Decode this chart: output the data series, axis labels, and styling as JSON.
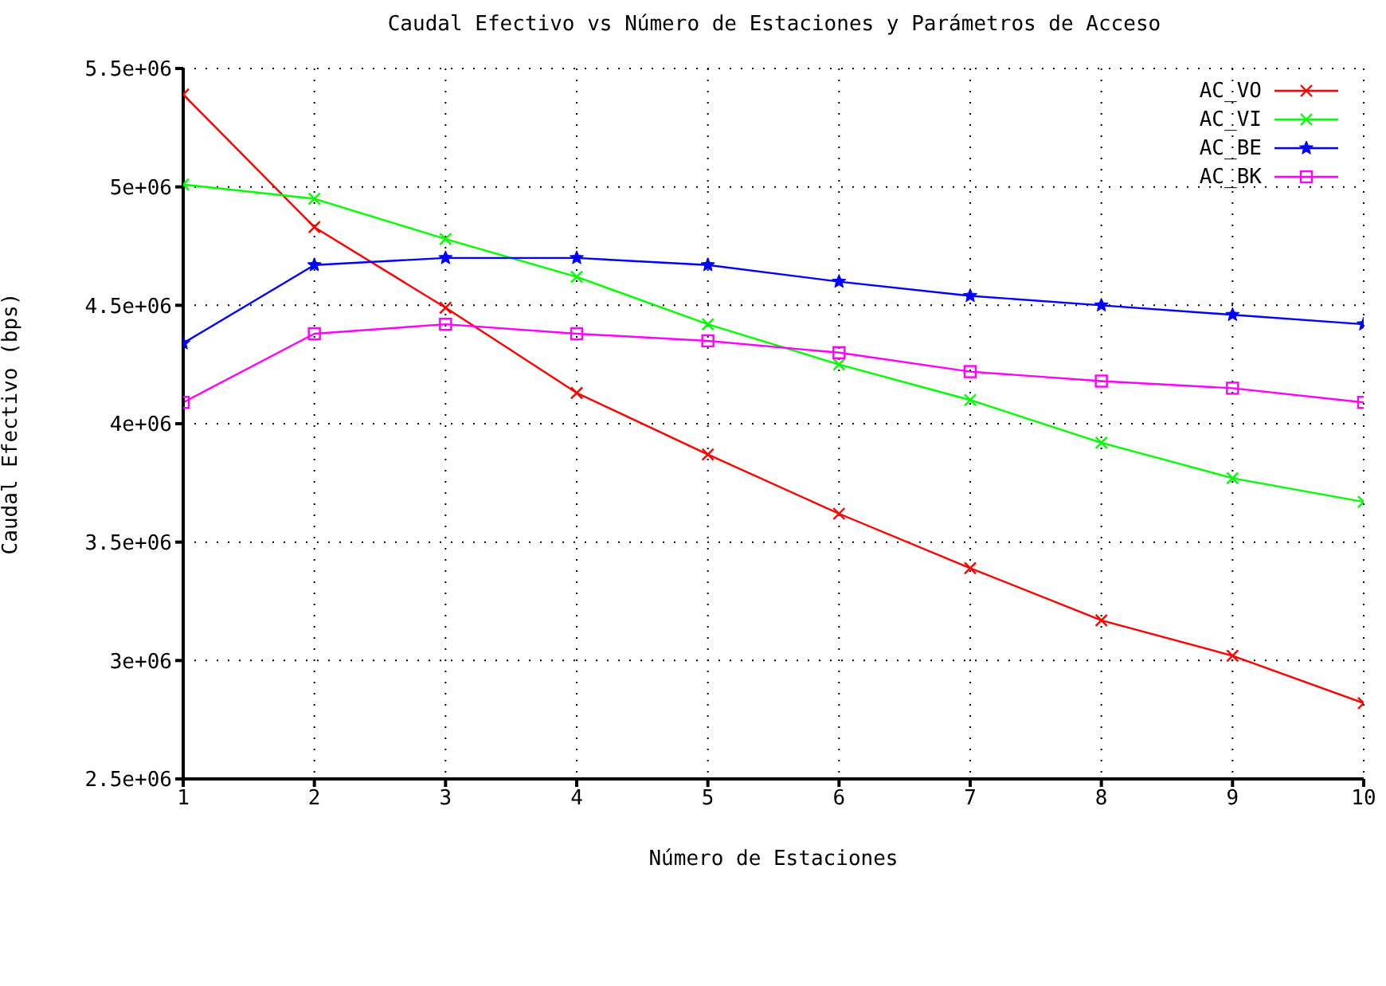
{
  "chart_data": {
    "type": "line",
    "title": "Caudal Efectivo vs Número de Estaciones y Parámetros de Acceso",
    "xlabel": "Número de Estaciones",
    "ylabel": "Caudal Efectivo (bps)",
    "x": [
      1,
      2,
      3,
      4,
      5,
      6,
      7,
      8,
      9,
      10
    ],
    "series": [
      {
        "name": "AC_VO",
        "color": "#ff0000",
        "marker": "cross",
        "values": [
          5390000,
          4830000,
          4490000,
          4130000,
          3870000,
          3620000,
          3390000,
          3170000,
          3020000,
          2820000
        ]
      },
      {
        "name": "AC_VI",
        "color": "#00ff00",
        "marker": "cross",
        "values": [
          5010000,
          4950000,
          4780000,
          4620000,
          4420000,
          4250000,
          4100000,
          3920000,
          3770000,
          3670000
        ]
      },
      {
        "name": "AC_BE",
        "color": "#0000ff",
        "marker": "star",
        "values": [
          4340000,
          4670000,
          4700000,
          4700000,
          4670000,
          4600000,
          4540000,
          4500000,
          4460000,
          4420000
        ]
      },
      {
        "name": "AC_BK",
        "color": "#ff00ff",
        "marker": "square",
        "values": [
          4090000,
          4380000,
          4420000,
          4380000,
          4350000,
          4300000,
          4220000,
          4180000,
          4150000,
          4090000
        ]
      }
    ],
    "xlim": [
      1,
      10
    ],
    "xticks": [
      1,
      2,
      3,
      4,
      5,
      6,
      7,
      8,
      9,
      10
    ],
    "ylim": [
      2500000,
      5500000
    ],
    "yticks": [
      {
        "value": 2500000,
        "label": "2.5e+06"
      },
      {
        "value": 3000000,
        "label": "3e+06"
      },
      {
        "value": 3500000,
        "label": "3.5e+06"
      },
      {
        "value": 4000000,
        "label": "4e+06"
      },
      {
        "value": 4500000,
        "label": "4.5e+06"
      },
      {
        "value": 5000000,
        "label": "5e+06"
      },
      {
        "value": 5500000,
        "label": "5.5e+06"
      }
    ],
    "grid": true,
    "legend": "top right",
    "line_style": "solid"
  }
}
